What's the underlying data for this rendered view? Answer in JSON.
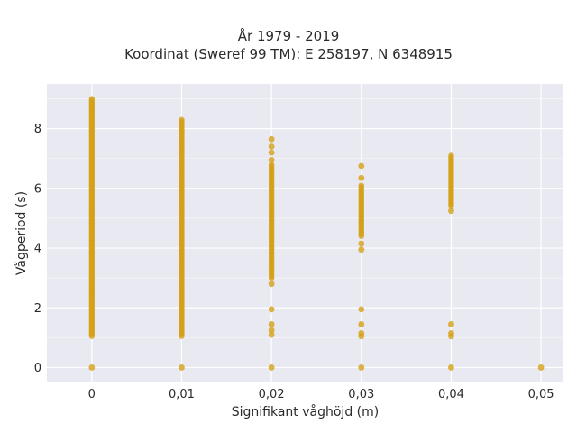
{
  "chart_data": {
    "type": "scatter",
    "title": "År 1979 - 2019",
    "subtitle": "Koordinat (Sweref 99 TM): E 258197, N 6348915",
    "xlabel": "Signifikant våghöjd (m)",
    "ylabel": "Vågperiod (s)",
    "xlim": [
      -0.005,
      0.0525
    ],
    "ylim": [
      -0.5,
      9.5
    ],
    "x_ticks": [
      {
        "value": 0,
        "label": "0"
      },
      {
        "value": 0.01,
        "label": "0,01"
      },
      {
        "value": 0.02,
        "label": "0,02"
      },
      {
        "value": 0.03,
        "label": "0,03"
      },
      {
        "value": 0.04,
        "label": "0,04"
      },
      {
        "value": 0.05,
        "label": "0,05"
      }
    ],
    "y_ticks": [
      {
        "value": 0,
        "label": "0"
      },
      {
        "value": 2,
        "label": "2"
      },
      {
        "value": 4,
        "label": "4"
      },
      {
        "value": 6,
        "label": "6"
      },
      {
        "value": 8,
        "label": "8"
      }
    ],
    "grid": true,
    "marker_color": "#D4A017",
    "background_color": "#E9E9F1",
    "columns": [
      {
        "x": 0,
        "y_min": 1.05,
        "y_max": 9.0,
        "extra_y": [
          0
        ]
      },
      {
        "x": 0.01,
        "y_min": 1.05,
        "y_max": 8.3,
        "extra_y": [
          0
        ]
      },
      {
        "x": 0.02,
        "y_min": 3.0,
        "y_max": 6.8,
        "extra_y": [
          0,
          1.1,
          1.25,
          1.45,
          1.95,
          2.8,
          6.95,
          7.2,
          7.4,
          7.65
        ]
      },
      {
        "x": 0.03,
        "y_min": 4.4,
        "y_max": 6.1,
        "extra_y": [
          0,
          1.05,
          1.15,
          1.45,
          1.95,
          3.95,
          4.15,
          6.35,
          6.75
        ]
      },
      {
        "x": 0.04,
        "y_min": 5.4,
        "y_max": 7.1,
        "extra_y": [
          0,
          1.05,
          1.15,
          1.45,
          5.25
        ]
      },
      {
        "x": 0.05,
        "y_min": null,
        "y_max": null,
        "extra_y": [
          0
        ]
      }
    ]
  }
}
